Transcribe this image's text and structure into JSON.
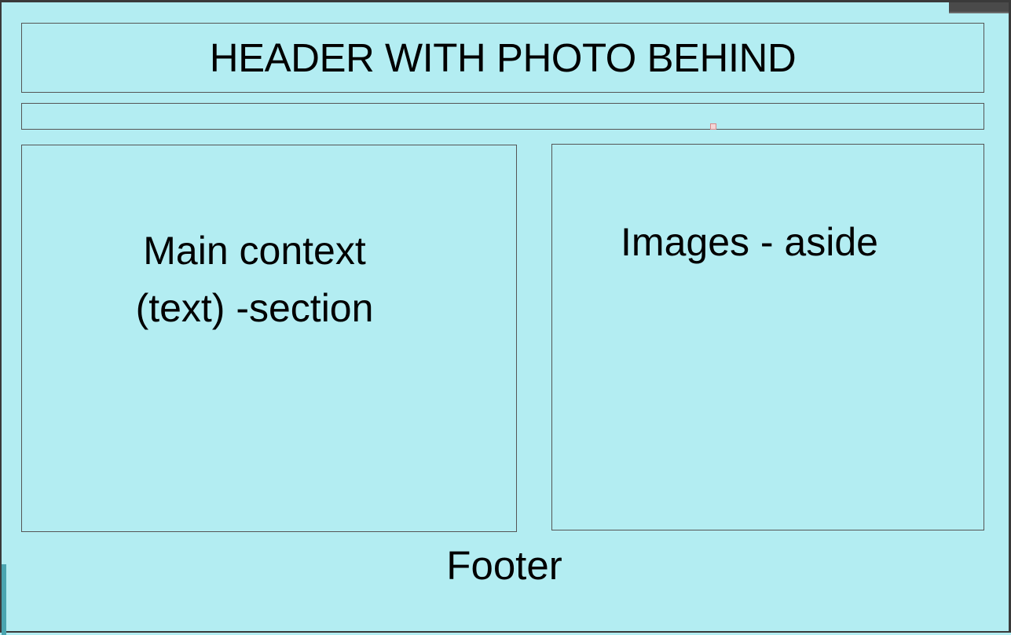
{
  "header": {
    "label": "HEADER WITH PHOTO BEHIND"
  },
  "main_section": {
    "line1": "Main context",
    "line2": "(text) -section"
  },
  "aside_section": {
    "label": "Images - aside"
  },
  "footer": {
    "label": "Footer"
  },
  "colors": {
    "background": "#b3edf2",
    "outline": "#555555"
  }
}
